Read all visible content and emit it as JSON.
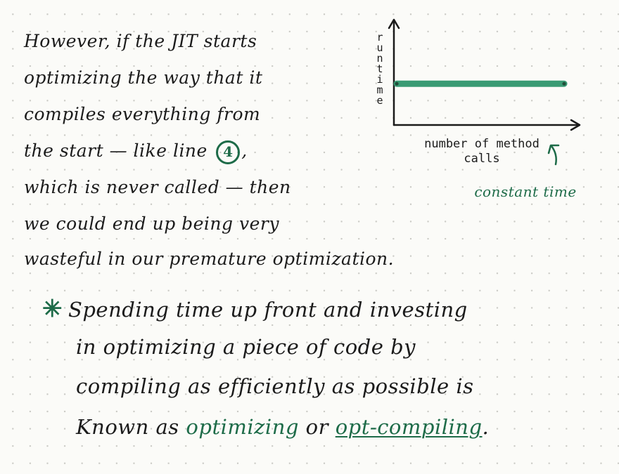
{
  "paragraph1": {
    "lines": [
      "However, if the JIT starts",
      "optimizing the way that it",
      "compiles everything from",
      "the start — like line",
      "which is never called — then",
      "we could end up being very",
      "wasteful in our premature optimization."
    ],
    "line4_number": "4",
    "line4_suffix": ","
  },
  "paragraph2": {
    "bullet": "✳",
    "lines": [
      "Spending time up front and investing",
      "in optimizing a piece of code by",
      "compiling as efficiently as possible is"
    ],
    "last_line": {
      "prefix": "Known as",
      "term1": "optimizing",
      "middle": "or",
      "term2": "opt-compiling",
      "suffix": "."
    }
  },
  "chart_data": {
    "type": "line",
    "ylabel": "runtime",
    "xlabel": "number of method calls",
    "series": [
      {
        "values": [
          1,
          1
        ],
        "style": "constant"
      }
    ],
    "annotation": "constant time",
    "line_color": "#3a9b74"
  },
  "colors": {
    "ink": "#1b1b1b",
    "green_ink": "#1d6b48"
  }
}
